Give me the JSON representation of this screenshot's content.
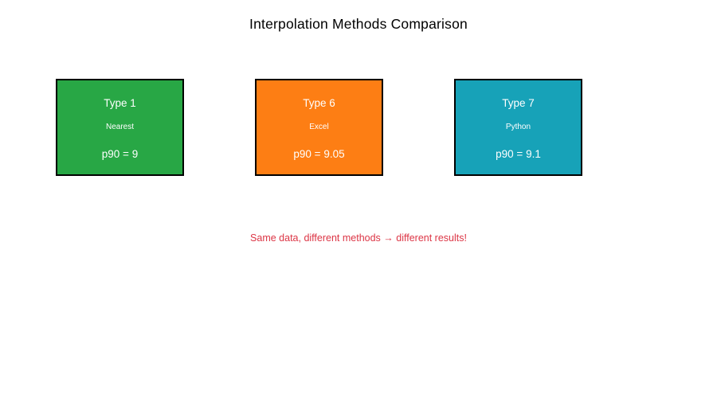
{
  "title": "Interpolation Methods Comparison",
  "annotation": "Same data, different methods → different results!",
  "colors": {
    "title": "#000000",
    "annotation": "#dc3545",
    "box_border": "#000000",
    "box_text": "#ffffff"
  },
  "boxes": [
    {
      "type_label": "Type 1",
      "method": "Nearest",
      "result": "p90 = 9",
      "color": "#28a745"
    },
    {
      "type_label": "Type 6",
      "method": "Excel",
      "result": "p90 = 9.05",
      "color": "#fd7e14"
    },
    {
      "type_label": "Type 7",
      "method": "Python",
      "result": "p90 = 9.1",
      "color": "#17a2b8"
    }
  ]
}
